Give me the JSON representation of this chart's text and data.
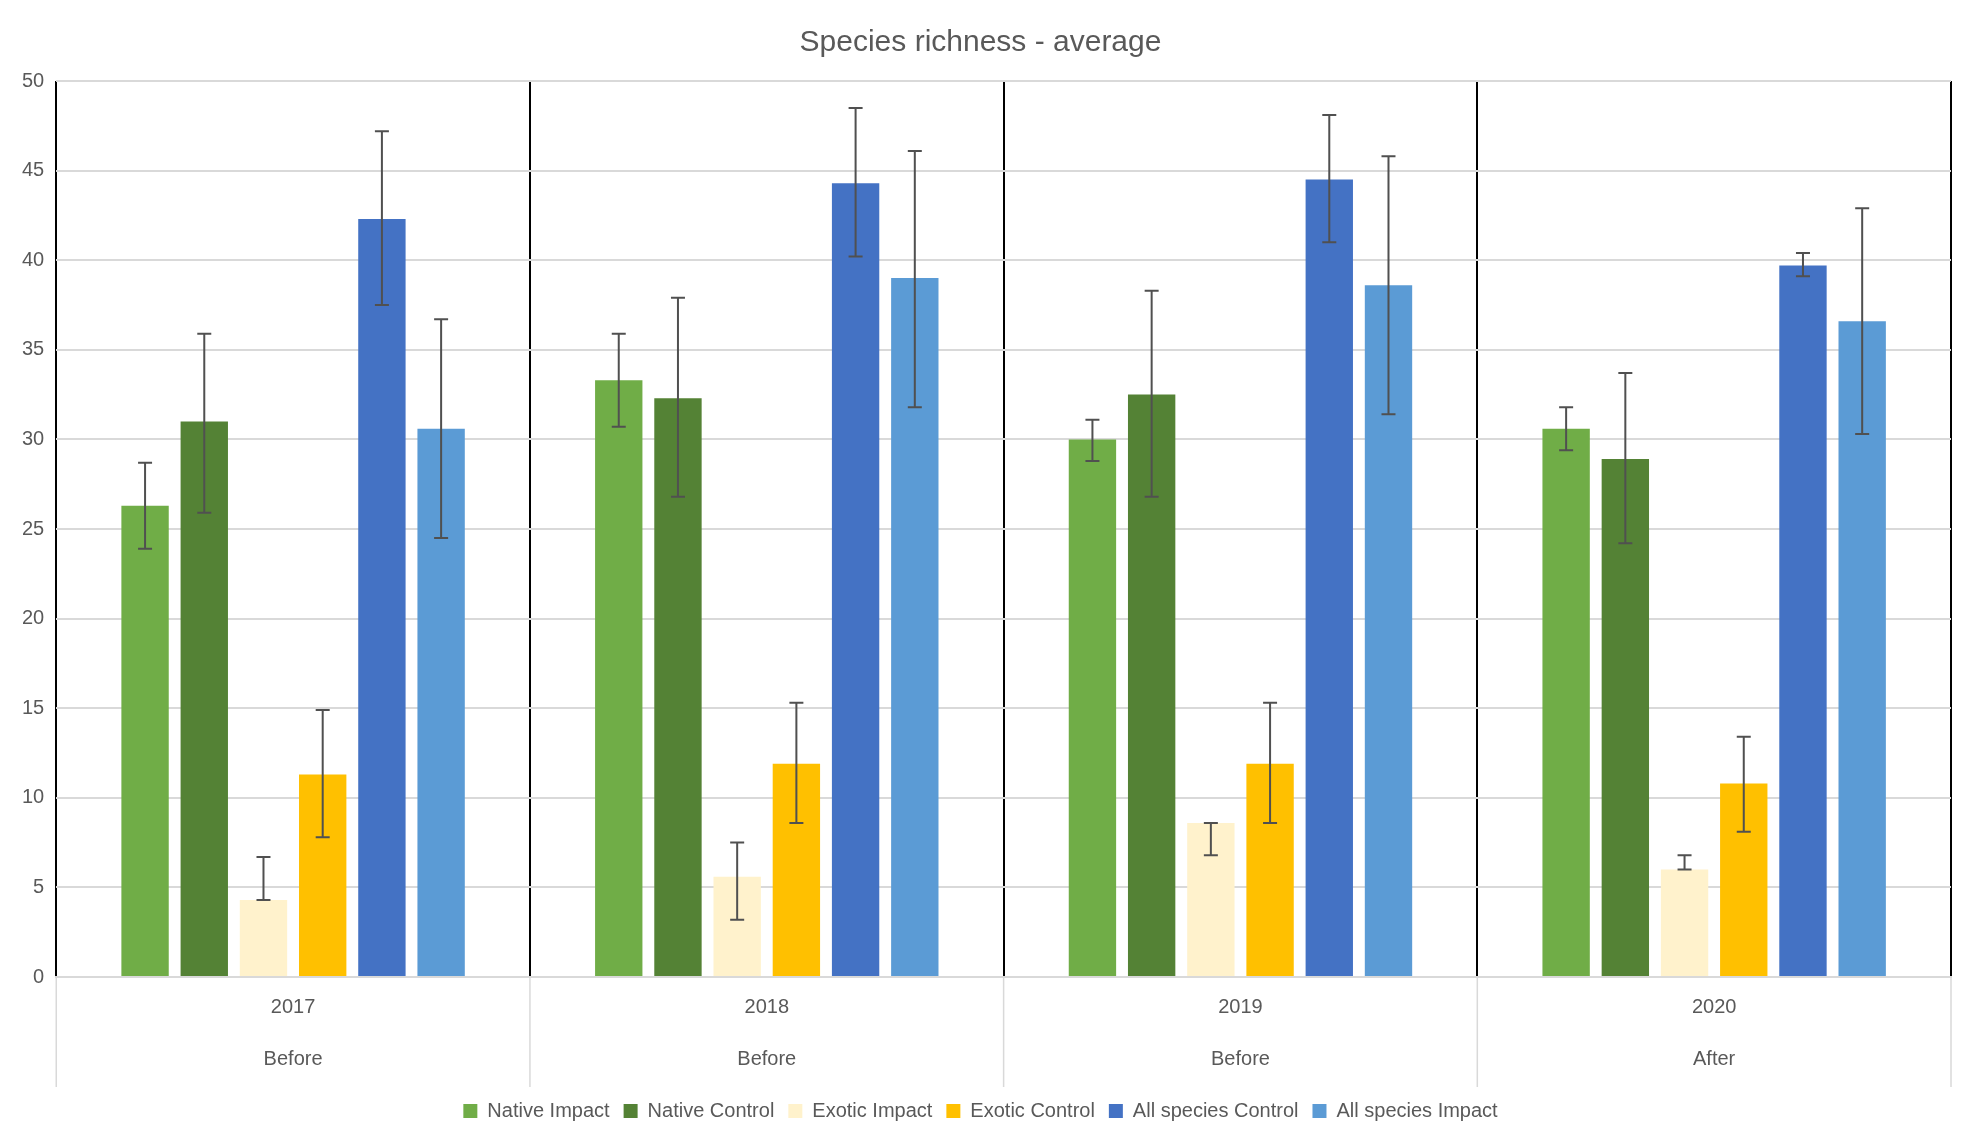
{
  "chart_data": {
    "type": "bar",
    "title": "Species richness - average",
    "categories": [
      "2017",
      "2018",
      "2019",
      "2020"
    ],
    "series": [
      {
        "name": "Native Impact",
        "color": "#70ad47",
        "values": [
          26.3,
          33.3,
          30.0,
          30.6
        ],
        "errors": [
          [
            23.9,
            28.7
          ],
          [
            30.7,
            35.9
          ],
          [
            28.8,
            31.1
          ],
          [
            29.4,
            31.8
          ]
        ]
      },
      {
        "name": "Native Control",
        "color": "#548235",
        "values": [
          31.0,
          32.3,
          32.5,
          28.9
        ],
        "errors": [
          [
            25.9,
            35.9
          ],
          [
            26.8,
            37.9
          ],
          [
            26.8,
            38.3
          ],
          [
            24.2,
            33.7
          ]
        ]
      },
      {
        "name": "Exotic Impact",
        "color": "#fff2cc",
        "values": [
          4.3,
          5.6,
          8.6,
          6.0
        ],
        "errors": [
          [
            4.3,
            6.7
          ],
          [
            3.2,
            7.5
          ],
          [
            6.8,
            8.6
          ],
          [
            6.0,
            6.8
          ]
        ]
      },
      {
        "name": "Exotic Control",
        "color": "#ffc000",
        "values": [
          11.3,
          11.9,
          11.9,
          10.8
        ],
        "errors": [
          [
            7.8,
            14.9
          ],
          [
            8.6,
            15.3
          ],
          [
            8.6,
            15.3
          ],
          [
            8.1,
            13.4
          ]
        ]
      },
      {
        "name": "All species Control",
        "color": "#4472c4",
        "values": [
          42.3,
          44.3,
          44.5,
          39.7
        ],
        "errors": [
          [
            37.5,
            47.2
          ],
          [
            40.2,
            48.5
          ],
          [
            41.0,
            48.1
          ],
          [
            39.1,
            40.4
          ]
        ]
      },
      {
        "name": "All species Impact",
        "color": "#5b9bd5",
        "values": [
          30.6,
          39.0,
          38.6,
          36.6
        ],
        "errors": [
          [
            24.5,
            36.7
          ],
          [
            31.8,
            46.1
          ],
          [
            31.4,
            45.8
          ],
          [
            30.3,
            42.9
          ]
        ]
      }
    ],
    "ylim": [
      0,
      50
    ],
    "yticks": [
      0,
      5,
      10,
      15,
      20,
      25,
      30,
      35,
      40,
      45,
      50
    ],
    "grid": true,
    "legend": "bottom",
    "annotations": [
      "Before",
      "Before",
      "Before",
      "After"
    ]
  }
}
